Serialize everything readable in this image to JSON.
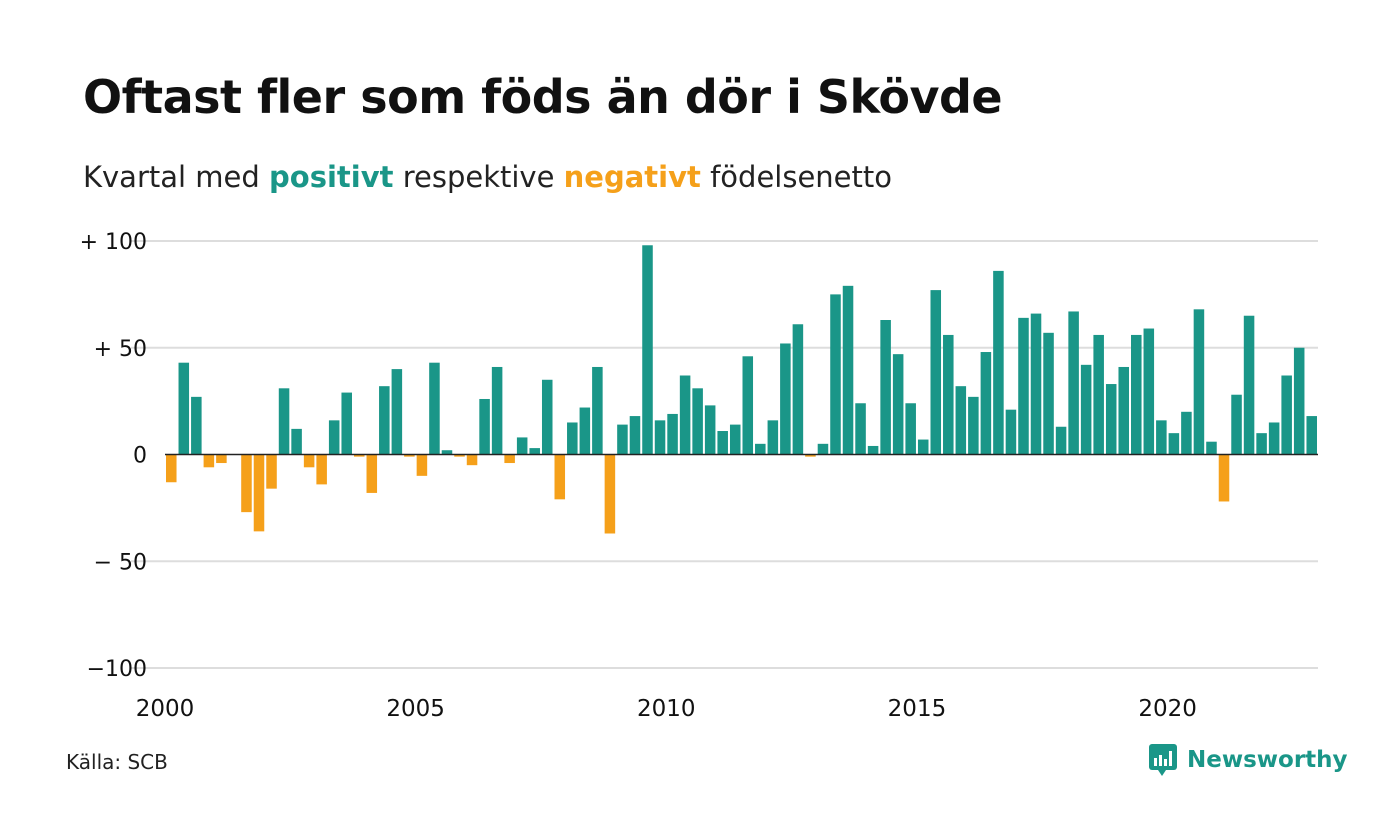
{
  "title": "Oftast fler som föds än dör i Skövde",
  "subtitle": {
    "prefix": "Kvartal med ",
    "positive_word": "positivt",
    "middle": " respektive ",
    "negative_word": "negativt",
    "suffix": " födelsenetto"
  },
  "source": "Källa: SCB",
  "brand": "Newsworthy",
  "colors": {
    "positive": "#1a9688",
    "negative": "#f5a01a",
    "grid": "#dddddd",
    "zero_line": "#222222"
  },
  "chart_data": {
    "type": "bar",
    "start_year": 2000,
    "periods_per_year": 4,
    "ylim": [
      -100,
      100
    ],
    "y_ticks": [
      100,
      50,
      0,
      -50,
      -100
    ],
    "y_tick_labels": [
      "+ 100",
      "+  50",
      "0",
      "− 50",
      "−100"
    ],
    "x_ticks": [
      2000,
      2005,
      2010,
      2015,
      2020
    ],
    "x_tick_labels": [
      "2000",
      "2005",
      "2010",
      "2015",
      "2020"
    ],
    "grid": true,
    "values": [
      -13,
      43,
      27,
      -6,
      -4,
      0,
      -27,
      -36,
      -16,
      31,
      12,
      -6,
      -14,
      16,
      29,
      -1,
      -18,
      32,
      40,
      -1,
      -10,
      43,
      2,
      -1,
      -5,
      26,
      41,
      -4,
      8,
      3,
      35,
      -21,
      15,
      22,
      41,
      -37,
      14,
      18,
      98,
      16,
      19,
      37,
      31,
      23,
      11,
      14,
      46,
      5,
      16,
      52,
      61,
      -1,
      5,
      75,
      79,
      24,
      4,
      63,
      47,
      24,
      7,
      77,
      56,
      32,
      27,
      48,
      86,
      21,
      64,
      66,
      57,
      13,
      67,
      42,
      56,
      33,
      41,
      56,
      59,
      16,
      10,
      20,
      68,
      6,
      -22,
      28,
      65,
      10,
      15,
      37,
      50,
      18
    ]
  }
}
